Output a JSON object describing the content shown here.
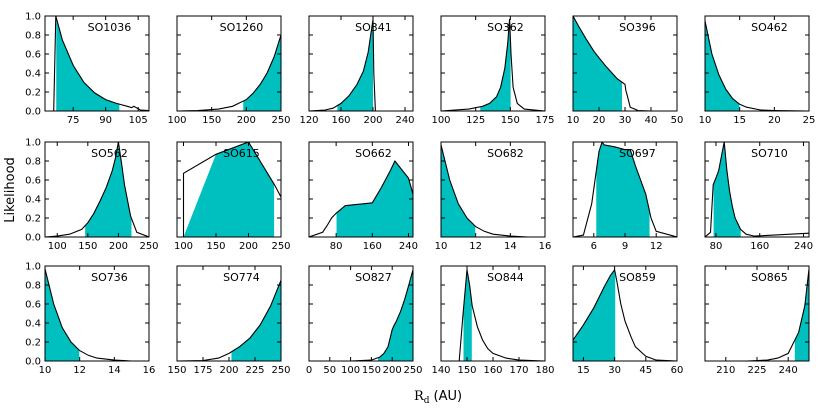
{
  "figure": {
    "ylabel": "Likelihood",
    "xlabel_symbol": "R",
    "xlabel_subscript": "d",
    "xlabel_unit": "(AU)",
    "fill_color": "#00bfbf",
    "line_color": "#000000"
  },
  "chart_data": [
    {
      "type": "area",
      "name": "SO1036",
      "xlim": [
        62,
        110
      ],
      "xticks": [
        75,
        90,
        105
      ],
      "ylim": [
        0,
        1
      ],
      "yticks": [
        "0.0",
        "0.2",
        "0.4",
        "0.6",
        "0.8",
        "1.0"
      ],
      "x": [
        62,
        66,
        67,
        70,
        75,
        80,
        85,
        90,
        95,
        100,
        102,
        103,
        106,
        110
      ],
      "y": [
        0,
        0,
        1.0,
        0.75,
        0.48,
        0.3,
        0.19,
        0.12,
        0.08,
        0.05,
        0.035,
        0.05,
        0.01,
        0.005
      ],
      "shade": [
        [
          67,
          96.5
        ]
      ]
    },
    {
      "type": "area",
      "name": "SO1260",
      "xlim": [
        100,
        250
      ],
      "xticks": [
        100,
        150,
        200,
        250
      ],
      "ylim": [
        0,
        1
      ],
      "x": [
        100,
        130,
        160,
        180,
        200,
        210,
        220,
        230,
        240,
        250
      ],
      "y": [
        0,
        0.005,
        0.02,
        0.05,
        0.12,
        0.19,
        0.28,
        0.4,
        0.57,
        0.8
      ],
      "shade": [
        [
          195,
          250
        ]
      ]
    },
    {
      "type": "area",
      "name": "SO341",
      "xlim": [
        120,
        250
      ],
      "xticks": [
        120,
        160,
        200,
        240
      ],
      "ylim": [
        0,
        1
      ],
      "x": [
        120,
        140,
        150,
        160,
        170,
        180,
        188,
        194,
        198,
        200,
        201,
        203,
        210,
        250
      ],
      "y": [
        0,
        0.01,
        0.03,
        0.08,
        0.16,
        0.28,
        0.42,
        0.62,
        0.85,
        0.96,
        0.4,
        0,
        0,
        0
      ],
      "shade": [
        [
          155,
          200.5
        ]
      ]
    },
    {
      "type": "area",
      "name": "SO362",
      "xlim": [
        100,
        175
      ],
      "xticks": [
        100,
        125,
        150,
        175
      ],
      "ylim": [
        0,
        1
      ],
      "x": [
        100,
        110,
        120,
        130,
        135,
        140,
        143,
        146,
        148,
        149.5,
        150.5,
        152,
        155,
        160,
        175
      ],
      "y": [
        0,
        0.01,
        0.02,
        0.05,
        0.08,
        0.15,
        0.25,
        0.45,
        0.7,
        0.97,
        0.6,
        0.25,
        0.08,
        0.02,
        0
      ],
      "shade": [
        [
          128,
          150.5
        ]
      ]
    },
    {
      "type": "area",
      "name": "SO396",
      "xlim": [
        10,
        50
      ],
      "xticks": [
        10,
        20,
        30,
        40,
        50
      ],
      "ylim": [
        0,
        1
      ],
      "x": [
        10,
        12,
        15,
        18,
        20,
        23,
        25,
        27,
        29,
        30,
        30.3,
        31,
        32,
        35,
        40,
        50
      ],
      "y": [
        1.0,
        0.9,
        0.76,
        0.63,
        0.56,
        0.46,
        0.4,
        0.34,
        0.3,
        0.28,
        0.22,
        0.15,
        0.04,
        0.005,
        0,
        0
      ],
      "shade": [
        [
          10,
          29
        ]
      ]
    },
    {
      "type": "area",
      "name": "SO462",
      "xlim": [
        10,
        25
      ],
      "xticks": [
        10,
        15,
        20,
        25
      ],
      "ylim": [
        0,
        1
      ],
      "x": [
        10,
        11,
        12,
        13,
        14,
        15,
        16,
        18,
        20,
        25
      ],
      "y": [
        0.95,
        0.6,
        0.38,
        0.23,
        0.13,
        0.07,
        0.04,
        0.01,
        0.005,
        0
      ],
      "shade": [
        [
          10,
          15
        ]
      ]
    },
    {
      "type": "area",
      "name": "SO562",
      "xlim": [
        80,
        250
      ],
      "xticks": [
        100,
        150,
        200,
        250
      ],
      "ylim": [
        0,
        1
      ],
      "x": [
        80,
        100,
        120,
        140,
        150,
        160,
        170,
        180,
        190,
        195,
        200,
        205,
        210,
        220,
        230,
        250
      ],
      "y": [
        0,
        0.01,
        0.03,
        0.08,
        0.15,
        0.25,
        0.38,
        0.52,
        0.7,
        0.83,
        1.0,
        0.78,
        0.55,
        0.22,
        0.05,
        0
      ],
      "shade": [
        [
          145,
          222
        ]
      ]
    },
    {
      "type": "area",
      "name": "SO615",
      "xlim": [
        90,
        250
      ],
      "xticks": [
        100,
        150,
        200,
        250
      ],
      "ylim": [
        0,
        1
      ],
      "x": [
        100,
        100,
        150,
        200,
        240,
        250
      ],
      "y": [
        0,
        0.67,
        0.87,
        1.0,
        0.55,
        0.42
      ],
      "shade": [
        [
          100,
          240
        ]
      ]
    },
    {
      "type": "area",
      "name": "SO662",
      "xlim": [
        20,
        250
      ],
      "xticks": [
        80,
        160,
        240
      ],
      "ylim": [
        0,
        1
      ],
      "x": [
        20,
        50,
        60,
        70,
        80,
        100,
        120,
        140,
        160,
        180,
        200,
        210,
        240,
        250
      ],
      "y": [
        0,
        0.05,
        0.12,
        0.2,
        0.25,
        0.33,
        0.34,
        0.35,
        0.36,
        0.52,
        0.7,
        0.8,
        0.62,
        0.45
      ],
      "shade": [
        [
          80,
          250
        ]
      ]
    },
    {
      "type": "area",
      "name": "SO682",
      "xlim": [
        10,
        16
      ],
      "xticks": [
        10,
        12,
        14,
        16
      ],
      "ylim": [
        0,
        1
      ],
      "x": [
        10,
        10.5,
        11,
        11.5,
        12,
        12.5,
        13,
        14,
        15,
        16
      ],
      "y": [
        0.97,
        0.6,
        0.35,
        0.2,
        0.11,
        0.06,
        0.03,
        0.01,
        0,
        0
      ],
      "shade": [
        [
          10,
          12
        ]
      ]
    },
    {
      "type": "area",
      "name": "SO697",
      "xlim": [
        4,
        14
      ],
      "xticks": [
        6,
        9,
        12
      ],
      "ylim": [
        0,
        1
      ],
      "x": [
        4,
        5,
        5.8,
        6.5,
        6.8,
        7,
        8,
        9,
        9.5,
        10,
        11,
        11.5,
        12,
        14
      ],
      "y": [
        0,
        0.02,
        0.35,
        0.9,
        1.0,
        0.97,
        0.95,
        0.92,
        0.92,
        0.75,
        0.45,
        0.2,
        0.06,
        0
      ],
      "shade": [
        [
          6.2,
          11.4
        ]
      ]
    },
    {
      "type": "area",
      "name": "SO710",
      "xlim": [
        60,
        250
      ],
      "xticks": [
        80,
        160,
        240
      ],
      "ylim": [
        0,
        1
      ],
      "x": [
        60,
        70,
        75,
        80,
        85,
        90,
        95,
        100,
        105,
        110,
        115,
        125,
        135,
        150,
        250
      ],
      "y": [
        0,
        0.05,
        0.55,
        0.62,
        0.7,
        0.85,
        1.0,
        0.7,
        0.48,
        0.32,
        0.2,
        0.08,
        0.03,
        0.01,
        0.04
      ],
      "shade": [
        [
          75,
          126
        ]
      ]
    },
    {
      "type": "area",
      "name": "SO736",
      "xlim": [
        10,
        16
      ],
      "xticks": [
        10,
        12,
        14,
        16
      ],
      "ylim": [
        0,
        1
      ],
      "x": [
        10,
        10.5,
        11,
        11.5,
        12,
        12.5,
        13,
        14,
        15,
        16
      ],
      "y": [
        0.97,
        0.6,
        0.35,
        0.2,
        0.11,
        0.06,
        0.03,
        0.01,
        0,
        0
      ],
      "shade": [
        [
          10,
          12
        ]
      ]
    },
    {
      "type": "area",
      "name": "SO774",
      "xlim": [
        150,
        250
      ],
      "xticks": [
        150,
        175,
        200,
        225,
        250
      ],
      "ylim": [
        0,
        1
      ],
      "x": [
        150,
        175,
        190,
        200,
        210,
        220,
        230,
        240,
        250
      ],
      "y": [
        0,
        0.005,
        0.03,
        0.08,
        0.15,
        0.24,
        0.38,
        0.58,
        0.85
      ],
      "shade": [
        [
          202,
          250
        ]
      ]
    },
    {
      "type": "area",
      "name": "SO827",
      "xlim": [
        0,
        250
      ],
      "xticks": [
        0,
        50,
        100,
        150,
        200,
        250
      ],
      "ylim": [
        0,
        1
      ],
      "x": [
        0,
        100,
        150,
        170,
        180,
        190,
        200,
        205,
        210,
        220,
        230,
        240,
        250
      ],
      "y": [
        0,
        0,
        0.01,
        0.04,
        0.08,
        0.15,
        0.33,
        0.38,
        0.42,
        0.52,
        0.65,
        0.8,
        0.96
      ],
      "shade": [
        [
          165,
          250
        ]
      ]
    },
    {
      "type": "area",
      "name": "SO844",
      "xlim": [
        140,
        180
      ],
      "xticks": [
        140,
        150,
        160,
        170,
        180
      ],
      "ylim": [
        0,
        1
      ],
      "x": [
        140,
        147,
        148.5,
        150,
        151,
        152,
        154,
        156,
        158,
        160,
        165,
        170,
        180
      ],
      "y": [
        0,
        0,
        0.5,
        0.96,
        0.8,
        0.58,
        0.36,
        0.22,
        0.13,
        0.08,
        0.03,
        0.01,
        0
      ],
      "shade": [
        [
          148.5,
          152
        ]
      ]
    },
    {
      "type": "area",
      "name": "SO859",
      "xlim": [
        10,
        60
      ],
      "xticks": [
        15,
        30,
        45,
        60
      ],
      "ylim": [
        0,
        1
      ],
      "x": [
        10,
        15,
        20,
        25,
        28,
        30,
        31,
        33,
        35,
        38,
        40,
        45,
        50,
        60
      ],
      "y": [
        0.22,
        0.38,
        0.56,
        0.78,
        0.9,
        0.96,
        0.85,
        0.6,
        0.42,
        0.25,
        0.15,
        0.05,
        0.01,
        0
      ],
      "shade": [
        [
          10,
          30.5
        ]
      ]
    },
    {
      "type": "area",
      "name": "SO865",
      "xlim": [
        200,
        250
      ],
      "xticks": [
        210,
        225,
        240
      ],
      "ylim": [
        0,
        1
      ],
      "x": [
        200,
        220,
        230,
        235,
        240,
        245,
        248,
        250
      ],
      "y": [
        0,
        0,
        0.01,
        0.03,
        0.08,
        0.3,
        0.58,
        0.97
      ],
      "shade": [
        [
          243,
          250
        ]
      ]
    }
  ]
}
